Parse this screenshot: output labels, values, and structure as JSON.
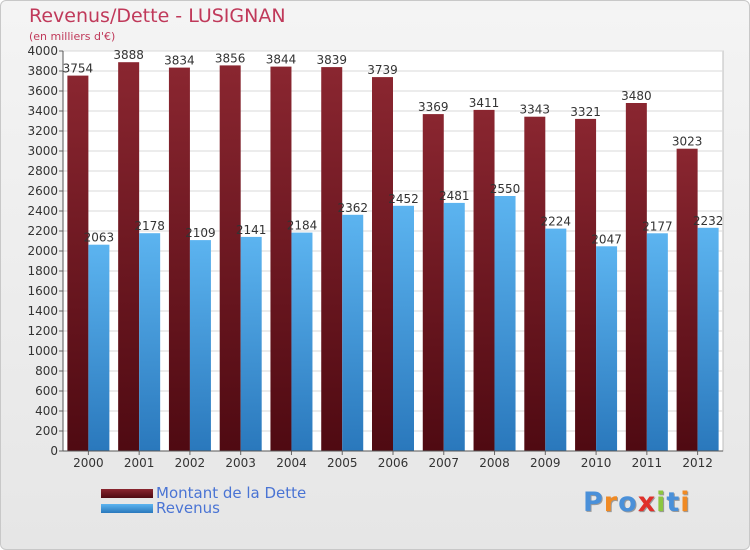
{
  "header": {
    "title": "Revenus/Dette - LUSIGNAN",
    "subtitle": "(en milliers d'€)"
  },
  "legend": {
    "items": [
      {
        "label": "Montant de la Dette",
        "color": "#6b1420"
      },
      {
        "label": "Revenus",
        "color": "#4ea4e4"
      }
    ]
  },
  "logo": {
    "text": "Proxiti",
    "letter_colors": [
      "#4a90d9",
      "#f08a24",
      "#4a90d9",
      "#e0302a",
      "#8cc63f",
      "#4a90d9",
      "#f08a24"
    ]
  },
  "chart_data": {
    "type": "bar",
    "categories": [
      "2000",
      "2001",
      "2002",
      "2003",
      "2004",
      "2005",
      "2006",
      "2007",
      "2008",
      "2009",
      "2010",
      "2011",
      "2012"
    ],
    "series": [
      {
        "name": "Montant de la Dette",
        "values": [
          3754,
          3888,
          3834,
          3856,
          3844,
          3839,
          3739,
          3369,
          3411,
          3343,
          3321,
          3480,
          3023
        ],
        "color": "#7a1b26"
      },
      {
        "name": "Revenus",
        "values": [
          2063,
          2178,
          2109,
          2141,
          2184,
          2362,
          2452,
          2481,
          2550,
          2224,
          2047,
          2177,
          2232
        ],
        "color": "#4ea4e4"
      }
    ],
    "ylim": [
      0,
      4000
    ],
    "ytick_step": 200,
    "grid": true,
    "legend_position": "bottom-left"
  }
}
